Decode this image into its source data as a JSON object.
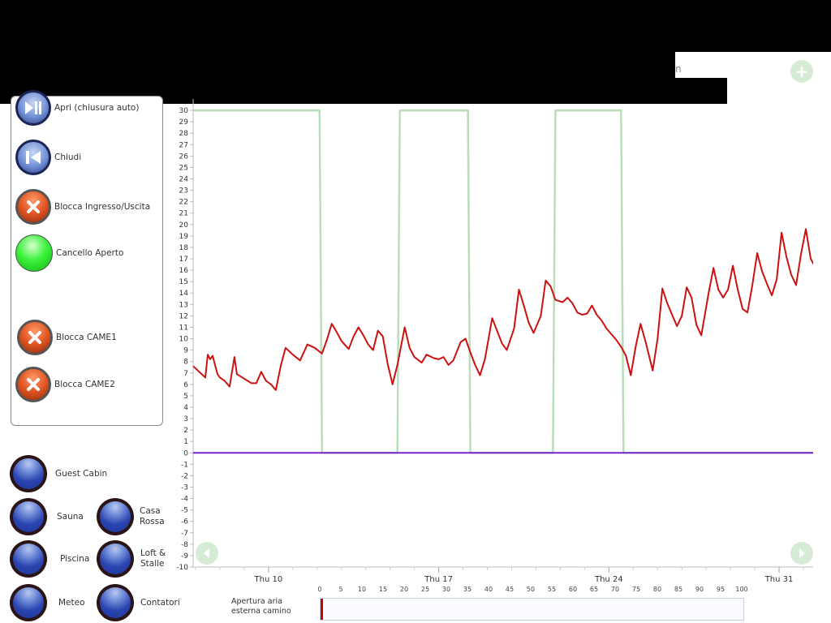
{
  "header": {
    "partial_text": "n"
  },
  "controls": {
    "open_auto_label": "Apri (chiusura auto)",
    "close_label": "Chiudi",
    "block_io_label": "Blocca Ingresso/Uscita",
    "gate_open_label": "Cancello Aperto",
    "block_came1_label": "Blocca CAME1",
    "block_came2_label": "Blocca CAME2"
  },
  "rooms": {
    "guest_cabin": "Guest Cabin",
    "sauna": "Sauna",
    "casa_rossa": "Casa\nRossa",
    "piscina": "Piscina",
    "loft_stalle": "Loft &\nStalle",
    "meteo": "Meteo",
    "contatori": "Contatori"
  },
  "icons": {
    "add": "plus-icon",
    "prev": "left-arrow-icon",
    "next": "right-arrow-icon"
  },
  "colors": {
    "temperature_line": "#cc1111",
    "state_line": "#b9dcb9",
    "zero_line": "#7a22cc",
    "gate_open": "#22dd22"
  },
  "chart_data": {
    "type": "line",
    "ylim": [
      -10,
      31
    ],
    "yticks": [
      30,
      29,
      28,
      27,
      26,
      25,
      24,
      23,
      22,
      21,
      20,
      19,
      18,
      17,
      16,
      15,
      14,
      13,
      12,
      11,
      10,
      9,
      8,
      7,
      6,
      5,
      4,
      3,
      2,
      1,
      0,
      -1,
      -2,
      -3,
      -4,
      -5,
      -6,
      -7,
      -8,
      -9,
      -10
    ],
    "xticks": [
      {
        "label": "Thu 10",
        "day": 10
      },
      {
        "label": "Thu 17",
        "day": 17
      },
      {
        "label": "Thu 24",
        "day": 24
      },
      {
        "label": "Thu 31",
        "day": 31
      }
    ],
    "xlim": [
      6.9,
      32.4
    ],
    "series": [
      {
        "values": [
          [
            6.9,
            7.6
          ],
          [
            7.2,
            7.0
          ],
          [
            7.4,
            6.6
          ],
          [
            7.5,
            8.6
          ],
          [
            7.6,
            8.2
          ],
          [
            7.7,
            8.5
          ],
          [
            7.9,
            6.9
          ],
          [
            8.0,
            6.6
          ],
          [
            8.2,
            6.3
          ],
          [
            8.4,
            5.8
          ],
          [
            8.6,
            8.4
          ],
          [
            8.7,
            6.9
          ],
          [
            9.0,
            6.5
          ],
          [
            9.3,
            6.1
          ],
          [
            9.5,
            6.1
          ],
          [
            9.7,
            7.1
          ],
          [
            9.9,
            6.3
          ],
          [
            10.1,
            6.0
          ],
          [
            10.3,
            5.5
          ],
          [
            10.5,
            7.6
          ],
          [
            10.7,
            9.2
          ],
          [
            11.0,
            8.6
          ],
          [
            11.3,
            8.1
          ],
          [
            11.6,
            9.5
          ],
          [
            11.9,
            9.2
          ],
          [
            12.2,
            8.7
          ],
          [
            12.4,
            9.9
          ],
          [
            12.6,
            11.3
          ],
          [
            12.8,
            10.6
          ],
          [
            13.0,
            9.8
          ],
          [
            13.3,
            9.1
          ],
          [
            13.5,
            10.2
          ],
          [
            13.7,
            11.0
          ],
          [
            13.9,
            10.3
          ],
          [
            14.1,
            9.5
          ],
          [
            14.3,
            9.0
          ],
          [
            14.5,
            10.7
          ],
          [
            14.7,
            10.2
          ],
          [
            14.9,
            7.8
          ],
          [
            15.1,
            6.0
          ],
          [
            15.3,
            7.7
          ],
          [
            15.6,
            11.0
          ],
          [
            15.8,
            9.2
          ],
          [
            16.0,
            8.4
          ],
          [
            16.3,
            7.9
          ],
          [
            16.5,
            8.6
          ],
          [
            16.8,
            8.3
          ],
          [
            17.0,
            8.2
          ],
          [
            17.2,
            8.4
          ],
          [
            17.4,
            7.7
          ],
          [
            17.6,
            8.1
          ],
          [
            17.9,
            9.7
          ],
          [
            18.1,
            10.0
          ],
          [
            18.3,
            8.8
          ],
          [
            18.5,
            7.7
          ],
          [
            18.7,
            6.8
          ],
          [
            18.9,
            8.2
          ],
          [
            19.2,
            11.8
          ],
          [
            19.4,
            10.7
          ],
          [
            19.6,
            9.6
          ],
          [
            19.8,
            9.0
          ],
          [
            20.1,
            10.9
          ],
          [
            20.3,
            14.3
          ],
          [
            20.5,
            12.9
          ],
          [
            20.7,
            11.4
          ],
          [
            20.9,
            10.5
          ],
          [
            21.2,
            12.0
          ],
          [
            21.4,
            15.1
          ],
          [
            21.6,
            14.6
          ],
          [
            21.8,
            13.4
          ],
          [
            22.1,
            13.2
          ],
          [
            22.3,
            13.6
          ],
          [
            22.5,
            13.1
          ],
          [
            22.7,
            12.3
          ],
          [
            22.9,
            12.1
          ],
          [
            23.1,
            12.2
          ],
          [
            23.3,
            12.9
          ],
          [
            23.5,
            12.1
          ],
          [
            23.7,
            11.6
          ],
          [
            23.9,
            10.9
          ],
          [
            24.1,
            10.4
          ],
          [
            24.3,
            9.9
          ],
          [
            24.5,
            9.3
          ],
          [
            24.7,
            8.5
          ],
          [
            24.9,
            6.8
          ],
          [
            25.1,
            9.3
          ],
          [
            25.3,
            11.3
          ],
          [
            25.5,
            9.8
          ],
          [
            25.8,
            7.2
          ],
          [
            26.0,
            10.0
          ],
          [
            26.2,
            14.4
          ],
          [
            26.4,
            13.1
          ],
          [
            26.6,
            12.1
          ],
          [
            26.8,
            11.1
          ],
          [
            27.0,
            12.0
          ],
          [
            27.2,
            14.5
          ],
          [
            27.4,
            13.6
          ],
          [
            27.6,
            11.2
          ],
          [
            27.8,
            10.3
          ],
          [
            28.1,
            14.0
          ],
          [
            28.3,
            16.2
          ],
          [
            28.5,
            14.3
          ],
          [
            28.7,
            13.6
          ],
          [
            28.9,
            14.3
          ],
          [
            29.1,
            16.4
          ],
          [
            29.3,
            14.3
          ],
          [
            29.5,
            12.6
          ],
          [
            29.7,
            12.3
          ],
          [
            29.9,
            14.7
          ],
          [
            30.1,
            17.5
          ],
          [
            30.3,
            15.9
          ],
          [
            30.5,
            14.8
          ],
          [
            30.7,
            13.8
          ],
          [
            30.9,
            15.2
          ],
          [
            31.1,
            19.3
          ],
          [
            31.3,
            17.2
          ],
          [
            31.5,
            15.6
          ],
          [
            31.7,
            14.7
          ],
          [
            31.9,
            17.4
          ],
          [
            32.1,
            19.6
          ],
          [
            32.3,
            17.0
          ],
          [
            32.5,
            16.2
          ],
          [
            32.7,
            14.8
          ],
          [
            32.9,
            14.7
          ],
          [
            33.0,
            14.4
          ],
          [
            33.1,
            14.9
          ]
        ]
      },
      {
        "values": [
          [
            6.9,
            30
          ],
          [
            12.1,
            30
          ],
          [
            12.2,
            0
          ],
          [
            15.3,
            0
          ],
          [
            15.4,
            30
          ],
          [
            18.2,
            30
          ],
          [
            18.3,
            0
          ],
          [
            21.7,
            0
          ],
          [
            21.8,
            30
          ],
          [
            24.5,
            30
          ],
          [
            24.6,
            0
          ],
          [
            33.1,
            0
          ]
        ]
      },
      {
        "values": [
          [
            6.9,
            0
          ],
          [
            33.1,
            0
          ]
        ]
      }
    ]
  },
  "timeline": {
    "label": "Apertura aria esterna camino",
    "ticks": [
      "0",
      "5",
      "10",
      "15",
      "20",
      "25",
      "30",
      "35",
      "40",
      "45",
      "50",
      "55",
      "60",
      "65",
      "70",
      "75",
      "80",
      "85",
      "90",
      "95",
      "100"
    ],
    "value": 0
  }
}
